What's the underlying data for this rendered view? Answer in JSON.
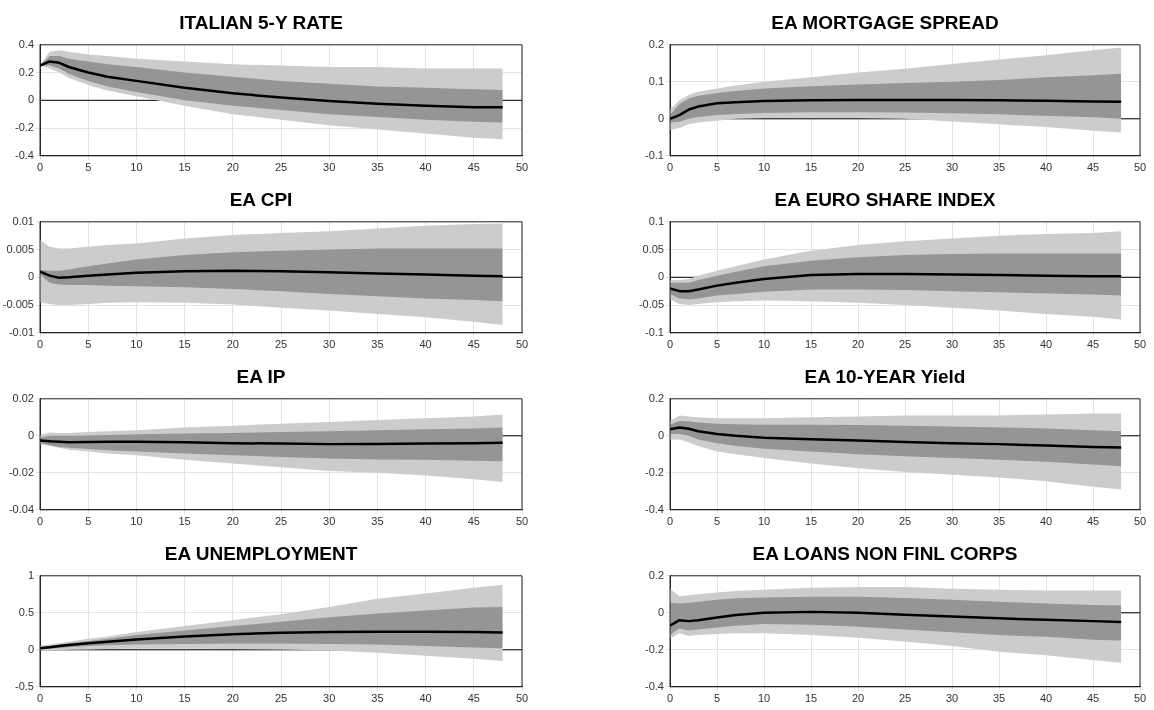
{
  "chart_data": [
    {
      "type": "line",
      "title": "ITALIAN 5-Y RATE",
      "x": [
        0,
        1,
        2,
        3,
        5,
        7,
        10,
        15,
        20,
        25,
        30,
        35,
        40,
        45,
        48
      ],
      "xlim": [
        0,
        50
      ],
      "xticks": [
        0,
        5,
        10,
        15,
        20,
        25,
        30,
        35,
        40,
        45,
        50
      ],
      "ylim": [
        -0.4,
        0.4
      ],
      "yticks": [
        -0.4,
        -0.2,
        0,
        0.2,
        0.4
      ],
      "grid": true,
      "ref_lines": [
        {
          "axis": "y",
          "value": 0,
          "color": "#000000"
        }
      ],
      "series": [
        {
          "color": "#cccccc",
          "values": [
            null,
            null,
            null,
            null,
            null,
            null,
            null,
            null,
            null,
            null,
            null,
            null,
            null,
            null,
            null
          ],
          "lower": [
            0.25,
            0.23,
            0.2,
            0.16,
            0.11,
            0.07,
            0.03,
            -0.04,
            -0.1,
            -0.14,
            -0.18,
            -0.21,
            -0.24,
            -0.27,
            -0.28
          ],
          "upper": [
            0.25,
            0.35,
            0.36,
            0.35,
            0.33,
            0.32,
            0.3,
            0.28,
            0.26,
            0.25,
            0.24,
            0.24,
            0.23,
            0.23,
            0.23
          ]
        },
        {
          "color": "#000000",
          "values": [
            0.25,
            0.28,
            0.27,
            0.24,
            0.2,
            0.17,
            0.14,
            0.09,
            0.05,
            0.02,
            -0.005,
            -0.025,
            -0.04,
            -0.05,
            -0.05
          ],
          "lower": [
            0.25,
            0.25,
            0.23,
            0.19,
            0.14,
            0.1,
            0.06,
            0,
            -0.04,
            -0.07,
            -0.1,
            -0.12,
            -0.14,
            -0.155,
            -0.16
          ],
          "upper": [
            0.25,
            0.32,
            0.32,
            0.3,
            0.28,
            0.26,
            0.24,
            0.2,
            0.17,
            0.14,
            0.12,
            0.1,
            0.09,
            0.08,
            0.075
          ]
        }
      ]
    },
    {
      "type": "line",
      "title": "EA MORTGAGE SPREAD",
      "x": [
        0,
        1,
        2,
        3,
        5,
        7,
        10,
        15,
        20,
        25,
        30,
        35,
        40,
        45,
        48
      ],
      "xlim": [
        0,
        50
      ],
      "xticks": [
        0,
        5,
        10,
        15,
        20,
        25,
        30,
        35,
        40,
        45,
        50
      ],
      "ylim": [
        -0.1,
        0.2
      ],
      "yticks": [
        -0.1,
        0,
        0.1,
        0.2
      ],
      "grid": true,
      "ref_lines": [
        {
          "axis": "y",
          "value": 0,
          "color": "#000000"
        }
      ],
      "series": [
        {
          "color": "#cccccc",
          "values": [
            null,
            null,
            null,
            null,
            null,
            null,
            null,
            null,
            null,
            null,
            null,
            null,
            null,
            null,
            null
          ],
          "lower": [
            -0.03,
            -0.025,
            -0.015,
            -0.01,
            -0.005,
            0,
            0.002,
            0.002,
            0.002,
            0,
            -0.007,
            -0.015,
            -0.022,
            -0.032,
            -0.037
          ],
          "upper": [
            0.025,
            0.05,
            0.065,
            0.073,
            0.082,
            0.09,
            0.1,
            0.112,
            0.125,
            0.135,
            0.148,
            0.16,
            0.172,
            0.185,
            0.193
          ]
        },
        {
          "color": "#000000",
          "values": [
            0,
            0.01,
            0.025,
            0.033,
            0.042,
            0.045,
            0.048,
            0.05,
            0.051,
            0.051,
            0.051,
            0.05,
            0.049,
            0.047,
            0.046
          ],
          "lower": [
            -0.01,
            -0.008,
            0,
            0.005,
            0.01,
            0.013,
            0.016,
            0.018,
            0.018,
            0.017,
            0.015,
            0.012,
            0.008,
            0.004,
            0
          ],
          "upper": [
            0.01,
            0.04,
            0.055,
            0.062,
            0.07,
            0.075,
            0.082,
            0.088,
            0.093,
            0.097,
            0.1,
            0.105,
            0.112,
            0.118,
            0.122
          ]
        }
      ]
    },
    {
      "type": "line",
      "title": "EA CPI",
      "x": [
        0,
        1,
        2,
        3,
        5,
        7,
        10,
        15,
        20,
        25,
        30,
        35,
        40,
        45,
        48
      ],
      "xlim": [
        0,
        50
      ],
      "xticks": [
        0,
        5,
        10,
        15,
        20,
        25,
        30,
        35,
        40,
        45,
        50
      ],
      "ylim": [
        -0.01,
        0.01
      ],
      "yticks": [
        -0.01,
        -0.005,
        0,
        0.005,
        0.01
      ],
      "grid": true,
      "ref_lines": [
        {
          "axis": "y",
          "value": 0,
          "color": "#000000"
        }
      ],
      "series": [
        {
          "color": "#cccccc",
          "values": [
            null,
            null,
            null,
            null,
            null,
            null,
            null,
            null,
            null,
            null,
            null,
            null,
            null,
            null,
            null
          ],
          "lower": [
            -0.0045,
            -0.0048,
            -0.005,
            -0.005,
            -0.0048,
            -0.0046,
            -0.0045,
            -0.0046,
            -0.0049,
            -0.0055,
            -0.006,
            -0.0066,
            -0.0072,
            -0.008,
            -0.0086
          ],
          "upper": [
            0.0067,
            0.0055,
            0.0052,
            0.0052,
            0.0055,
            0.0058,
            0.0061,
            0.007,
            0.0076,
            0.008,
            0.0083,
            0.0088,
            0.0093,
            0.0096,
            0.0097
          ]
        },
        {
          "color": "#000000",
          "values": [
            0.001,
            0.0003,
            -0.0001,
            0,
            0.0003,
            0.0005,
            0.0008,
            0.0011,
            0.0012,
            0.0011,
            0.0009,
            0.0007,
            0.0005,
            0.0003,
            0.0002
          ],
          "lower": [
            0.0005,
            -0.001,
            -0.0013,
            -0.0014,
            -0.0014,
            -0.0015,
            -0.0016,
            -0.0018,
            -0.0021,
            -0.0025,
            -0.003,
            -0.0034,
            -0.0038,
            -0.0041,
            -0.0043
          ],
          "upper": [
            0.0013,
            0.0012,
            0.0012,
            0.0014,
            0.002,
            0.0025,
            0.0032,
            0.004,
            0.0045,
            0.0048,
            0.005,
            0.0052,
            0.0052,
            0.0052,
            0.0052
          ]
        }
      ]
    },
    {
      "type": "line",
      "title": "EA EURO SHARE INDEX",
      "x": [
        0,
        1,
        2,
        3,
        5,
        7,
        10,
        15,
        20,
        25,
        30,
        35,
        40,
        45,
        48
      ],
      "xlim": [
        0,
        50
      ],
      "xticks": [
        0,
        5,
        10,
        15,
        20,
        25,
        30,
        35,
        40,
        45,
        50
      ],
      "ylim": [
        -0.1,
        0.1
      ],
      "yticks": [
        -0.1,
        -0.05,
        0,
        0.05,
        0.1
      ],
      "grid": true,
      "ref_lines": [
        {
          "axis": "y",
          "value": 0,
          "color": "#000000"
        }
      ],
      "series": [
        {
          "color": "#cccccc",
          "values": [
            null,
            null,
            null,
            null,
            null,
            null,
            null,
            null,
            null,
            null,
            null,
            null,
            null,
            null,
            null
          ],
          "lower": [
            -0.04,
            -0.048,
            -0.05,
            -0.048,
            -0.045,
            -0.043,
            -0.042,
            -0.043,
            -0.046,
            -0.05,
            -0.055,
            -0.06,
            -0.066,
            -0.071,
            -0.076
          ],
          "upper": [
            -0.005,
            -0.005,
            -0.003,
            0.003,
            0.012,
            0.02,
            0.032,
            0.048,
            0.058,
            0.065,
            0.07,
            0.075,
            0.078,
            0.08,
            0.083
          ]
        },
        {
          "color": "#000000",
          "values": [
            -0.02,
            -0.025,
            -0.025,
            -0.022,
            -0.015,
            -0.01,
            -0.003,
            0.004,
            0.006,
            0.006,
            0.005,
            0.004,
            0.003,
            0.002,
            0.002
          ],
          "lower": [
            -0.03,
            -0.038,
            -0.04,
            -0.038,
            -0.033,
            -0.03,
            -0.026,
            -0.022,
            -0.022,
            -0.023,
            -0.025,
            -0.027,
            -0.029,
            -0.031,
            -0.033
          ],
          "upper": [
            -0.01,
            -0.01,
            -0.01,
            -0.005,
            0.003,
            0.01,
            0.02,
            0.03,
            0.036,
            0.04,
            0.042,
            0.043,
            0.043,
            0.043,
            0.043
          ]
        }
      ]
    },
    {
      "type": "line",
      "title": "EA IP",
      "x": [
        0,
        1,
        2,
        3,
        5,
        7,
        10,
        15,
        20,
        25,
        30,
        35,
        40,
        45,
        48
      ],
      "xlim": [
        0,
        50
      ],
      "xticks": [
        0,
        5,
        10,
        15,
        20,
        25,
        30,
        35,
        40,
        45,
        50
      ],
      "ylim": [
        -0.04,
        0.02
      ],
      "yticks": [
        -0.04,
        -0.02,
        0,
        0.02
      ],
      "grid": true,
      "ref_lines": [
        {
          "axis": "y",
          "value": 0,
          "color": "#000000"
        }
      ],
      "series": [
        {
          "color": "#cccccc",
          "values": [
            null,
            null,
            null,
            null,
            null,
            null,
            null,
            null,
            null,
            null,
            null,
            null,
            null,
            null,
            null
          ],
          "lower": [
            -0.0045,
            -0.0055,
            -0.0065,
            -0.0075,
            -0.0085,
            -0.0095,
            -0.0105,
            -0.013,
            -0.015,
            -0.017,
            -0.019,
            -0.02,
            -0.0215,
            -0.0235,
            -0.025
          ],
          "upper": [
            0.0005,
            0.0018,
            0.0015,
            0.0015,
            0.002,
            0.0025,
            0.003,
            0.0045,
            0.0055,
            0.0065,
            0.0075,
            0.0085,
            0.0095,
            0.0105,
            0.0115
          ]
        },
        {
          "color": "#000000",
          "values": [
            -0.0025,
            -0.003,
            -0.0032,
            -0.0035,
            -0.0033,
            -0.0032,
            -0.0032,
            -0.0035,
            -0.004,
            -0.0042,
            -0.0045,
            -0.0044,
            -0.0042,
            -0.004,
            -0.0038
          ],
          "lower": [
            -0.004,
            -0.005,
            -0.006,
            -0.0065,
            -0.0072,
            -0.0078,
            -0.0085,
            -0.0095,
            -0.0105,
            -0.0115,
            -0.0123,
            -0.0128,
            -0.013,
            -0.0135,
            -0.0137
          ],
          "upper": [
            -0.001,
            0,
            0,
            0,
            0.0002,
            0.0005,
            0.0008,
            0.0012,
            0.0015,
            0.002,
            0.0025,
            0.003,
            0.0035,
            0.004,
            0.0045
          ]
        }
      ]
    },
    {
      "type": "line",
      "title": "EA 10-YEAR Yield",
      "x": [
        0,
        1,
        2,
        3,
        5,
        7,
        10,
        15,
        20,
        25,
        30,
        35,
        40,
        45,
        48
      ],
      "xlim": [
        0,
        50
      ],
      "xticks": [
        0,
        5,
        10,
        15,
        20,
        25,
        30,
        35,
        40,
        45,
        50
      ],
      "ylim": [
        -0.4,
        0.2
      ],
      "yticks": [
        -0.4,
        -0.2,
        0,
        0.2
      ],
      "grid": true,
      "ref_lines": [
        {
          "axis": "y",
          "value": 0,
          "color": "#000000"
        }
      ],
      "series": [
        {
          "color": "#cccccc",
          "values": [
            null,
            null,
            null,
            null,
            null,
            null,
            null,
            null,
            null,
            null,
            null,
            null,
            null,
            null,
            null
          ],
          "lower": [
            -0.02,
            -0.02,
            -0.035,
            -0.055,
            -0.085,
            -0.1,
            -0.12,
            -0.15,
            -0.175,
            -0.195,
            -0.21,
            -0.225,
            -0.245,
            -0.275,
            -0.29
          ],
          "upper": [
            0.08,
            0.11,
            0.105,
            0.1,
            0.095,
            0.095,
            0.095,
            0.1,
            0.105,
            0.11,
            0.11,
            0.11,
            0.115,
            0.12,
            0.12
          ]
        },
        {
          "color": "#000000",
          "values": [
            0.035,
            0.045,
            0.038,
            0.025,
            0.01,
            0,
            -0.01,
            -0.018,
            -0.025,
            -0.033,
            -0.04,
            -0.045,
            -0.053,
            -0.06,
            -0.063
          ],
          "lower": [
            0.01,
            0.01,
            0,
            -0.02,
            -0.04,
            -0.055,
            -0.07,
            -0.085,
            -0.1,
            -0.11,
            -0.12,
            -0.13,
            -0.14,
            -0.155,
            -0.165
          ],
          "upper": [
            0.06,
            0.08,
            0.078,
            0.072,
            0.065,
            0.062,
            0.06,
            0.06,
            0.058,
            0.055,
            0.05,
            0.045,
            0.04,
            0.03,
            0.025
          ]
        }
      ]
    },
    {
      "type": "line",
      "title": "EA UNEMPLOYMENT",
      "x": [
        0,
        1,
        2,
        3,
        5,
        7,
        10,
        15,
        20,
        25,
        30,
        35,
        40,
        45,
        48
      ],
      "xlim": [
        0,
        50
      ],
      "xticks": [
        0,
        5,
        10,
        15,
        20,
        25,
        30,
        35,
        40,
        45,
        50
      ],
      "ylim": [
        -0.5,
        1
      ],
      "yticks": [
        -0.5,
        0,
        0.5,
        1
      ],
      "grid": true,
      "ref_lines": [
        {
          "axis": "y",
          "value": 0,
          "color": "#000000"
        }
      ],
      "series": [
        {
          "color": "#cccccc",
          "values": [
            null,
            null,
            null,
            null,
            null,
            null,
            null,
            null,
            null,
            null,
            null,
            null,
            null,
            null,
            null
          ],
          "lower": [
            -0.01,
            -0.01,
            -0.005,
            0,
            0.005,
            0.01,
            0.015,
            0.015,
            0.01,
            0.005,
            -0.01,
            -0.04,
            -0.08,
            -0.12,
            -0.15
          ],
          "upper": [
            0.05,
            0.07,
            0.09,
            0.11,
            0.15,
            0.18,
            0.24,
            0.32,
            0.4,
            0.48,
            0.58,
            0.69,
            0.76,
            0.84,
            0.88
          ]
        },
        {
          "color": "#000000",
          "values": [
            0.02,
            0.035,
            0.05,
            0.065,
            0.09,
            0.11,
            0.14,
            0.18,
            0.21,
            0.23,
            0.24,
            0.245,
            0.245,
            0.24,
            0.235
          ],
          "lower": [
            0.01,
            0.015,
            0.025,
            0.035,
            0.05,
            0.06,
            0.07,
            0.08,
            0.085,
            0.085,
            0.08,
            0.07,
            0.05,
            0.03,
            0.02
          ],
          "upper": [
            0.04,
            0.05,
            0.07,
            0.09,
            0.12,
            0.15,
            0.2,
            0.26,
            0.32,
            0.38,
            0.44,
            0.49,
            0.53,
            0.57,
            0.58
          ]
        }
      ]
    },
    {
      "type": "line",
      "title": "EA LOANS NON FINL CORPS",
      "x": [
        0,
        1,
        2,
        3,
        5,
        7,
        10,
        15,
        20,
        25,
        30,
        35,
        40,
        45,
        48
      ],
      "xlim": [
        0,
        50
      ],
      "xticks": [
        0,
        5,
        10,
        15,
        20,
        25,
        30,
        35,
        40,
        45,
        50
      ],
      "ylim": [
        -0.4,
        0.2
      ],
      "yticks": [
        -0.4,
        -0.2,
        0,
        0.2
      ],
      "grid": true,
      "ref_lines": [
        {
          "axis": "y",
          "value": 0,
          "color": "#000000"
        }
      ],
      "series": [
        {
          "color": "#cccccc",
          "values": [
            null,
            null,
            null,
            null,
            null,
            null,
            null,
            null,
            null,
            null,
            null,
            null,
            null,
            null,
            null
          ],
          "lower": [
            -0.14,
            -0.11,
            -0.125,
            -0.12,
            -0.115,
            -0.11,
            -0.11,
            -0.12,
            -0.135,
            -0.155,
            -0.18,
            -0.21,
            -0.23,
            -0.255,
            -0.27
          ],
          "upper": [
            0.13,
            0.09,
            0.095,
            0.1,
            0.11,
            0.118,
            0.125,
            0.135,
            0.14,
            0.14,
            0.13,
            0.125,
            0.12,
            0.12,
            0.12
          ]
        },
        {
          "color": "#000000",
          "values": [
            -0.07,
            -0.04,
            -0.045,
            -0.04,
            -0.025,
            -0.012,
            0,
            0.005,
            0,
            -0.01,
            -0.02,
            -0.03,
            -0.038,
            -0.045,
            -0.05
          ],
          "lower": [
            -0.12,
            -0.085,
            -0.095,
            -0.09,
            -0.08,
            -0.07,
            -0.06,
            -0.065,
            -0.075,
            -0.09,
            -0.105,
            -0.12,
            -0.13,
            -0.145,
            -0.15
          ],
          "upper": [
            0.055,
            0.05,
            0.055,
            0.06,
            0.07,
            0.078,
            0.083,
            0.087,
            0.087,
            0.08,
            0.07,
            0.06,
            0.05,
            0.042,
            0.04
          ]
        }
      ]
    }
  ]
}
